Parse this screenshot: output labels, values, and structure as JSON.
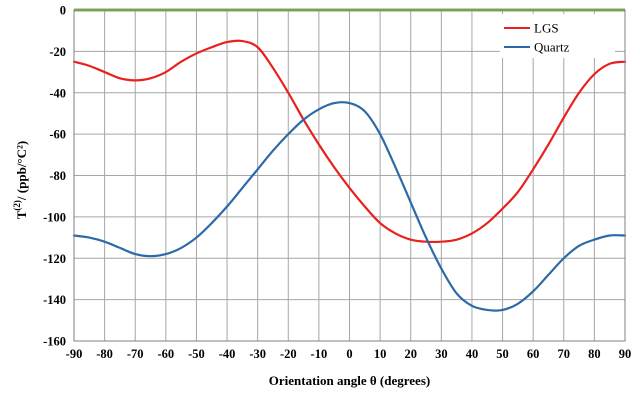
{
  "chart_data": {
    "type": "line",
    "xlabel": "Orientation angle θ (degrees)",
    "ylabel_main": "T",
    "ylabel_sup": "(2)",
    "ylabel_rest": "/ (ppb/°C²)",
    "xlim": [
      -90,
      90
    ],
    "ylim": [
      -160,
      0
    ],
    "x_ticks": [
      "-90",
      "-80",
      "-70",
      "-60",
      "-50",
      "-40",
      "-30",
      "-20",
      "-10",
      "0",
      "10",
      "20",
      "30",
      "40",
      "50",
      "60",
      "70",
      "80",
      "90"
    ],
    "y_ticks": [
      "0",
      "-20",
      "-40",
      "-60",
      "-80",
      "-100",
      "-120",
      "-140",
      "-160"
    ],
    "grid": true,
    "legend_position": "top-right",
    "zero_line_color": "#7ab648",
    "series": [
      {
        "name": "LGS",
        "color": "#e8201e",
        "x": [
          -90,
          -85,
          -80,
          -75,
          -70,
          -65,
          -60,
          -55,
          -50,
          -45,
          -40,
          -35,
          -30,
          -25,
          -20,
          -15,
          -10,
          -5,
          0,
          5,
          10,
          15,
          20,
          25,
          30,
          35,
          40,
          45,
          50,
          55,
          60,
          65,
          70,
          75,
          80,
          85,
          90
        ],
        "y": [
          -25,
          -27,
          -30,
          -33,
          -34,
          -33,
          -30,
          -25,
          -21,
          -18,
          -15.5,
          -15,
          -18,
          -28,
          -40,
          -53,
          -65,
          -76,
          -86,
          -95,
          -103,
          -108,
          -111,
          -112,
          -112,
          -111,
          -108,
          -103,
          -96,
          -88,
          -77,
          -65,
          -52,
          -40,
          -31,
          -26,
          -25
        ]
      },
      {
        "name": "Quartz",
        "color": "#2c6aa7",
        "x": [
          -90,
          -85,
          -80,
          -75,
          -70,
          -65,
          -60,
          -55,
          -50,
          -45,
          -40,
          -35,
          -30,
          -25,
          -20,
          -15,
          -10,
          -5,
          0,
          5,
          10,
          15,
          20,
          25,
          30,
          35,
          40,
          45,
          50,
          55,
          60,
          65,
          70,
          75,
          80,
          85,
          90
        ],
        "y": [
          -109,
          -110,
          -112,
          -115,
          -118,
          -119,
          -118,
          -115,
          -110,
          -103,
          -95,
          -86,
          -77,
          -68,
          -60,
          -53,
          -48,
          -45,
          -45,
          -49,
          -60,
          -76,
          -93,
          -110,
          -125,
          -137,
          -143,
          -145,
          -145,
          -142,
          -136,
          -128,
          -120,
          -114,
          -111,
          -109,
          -109
        ]
      }
    ]
  }
}
